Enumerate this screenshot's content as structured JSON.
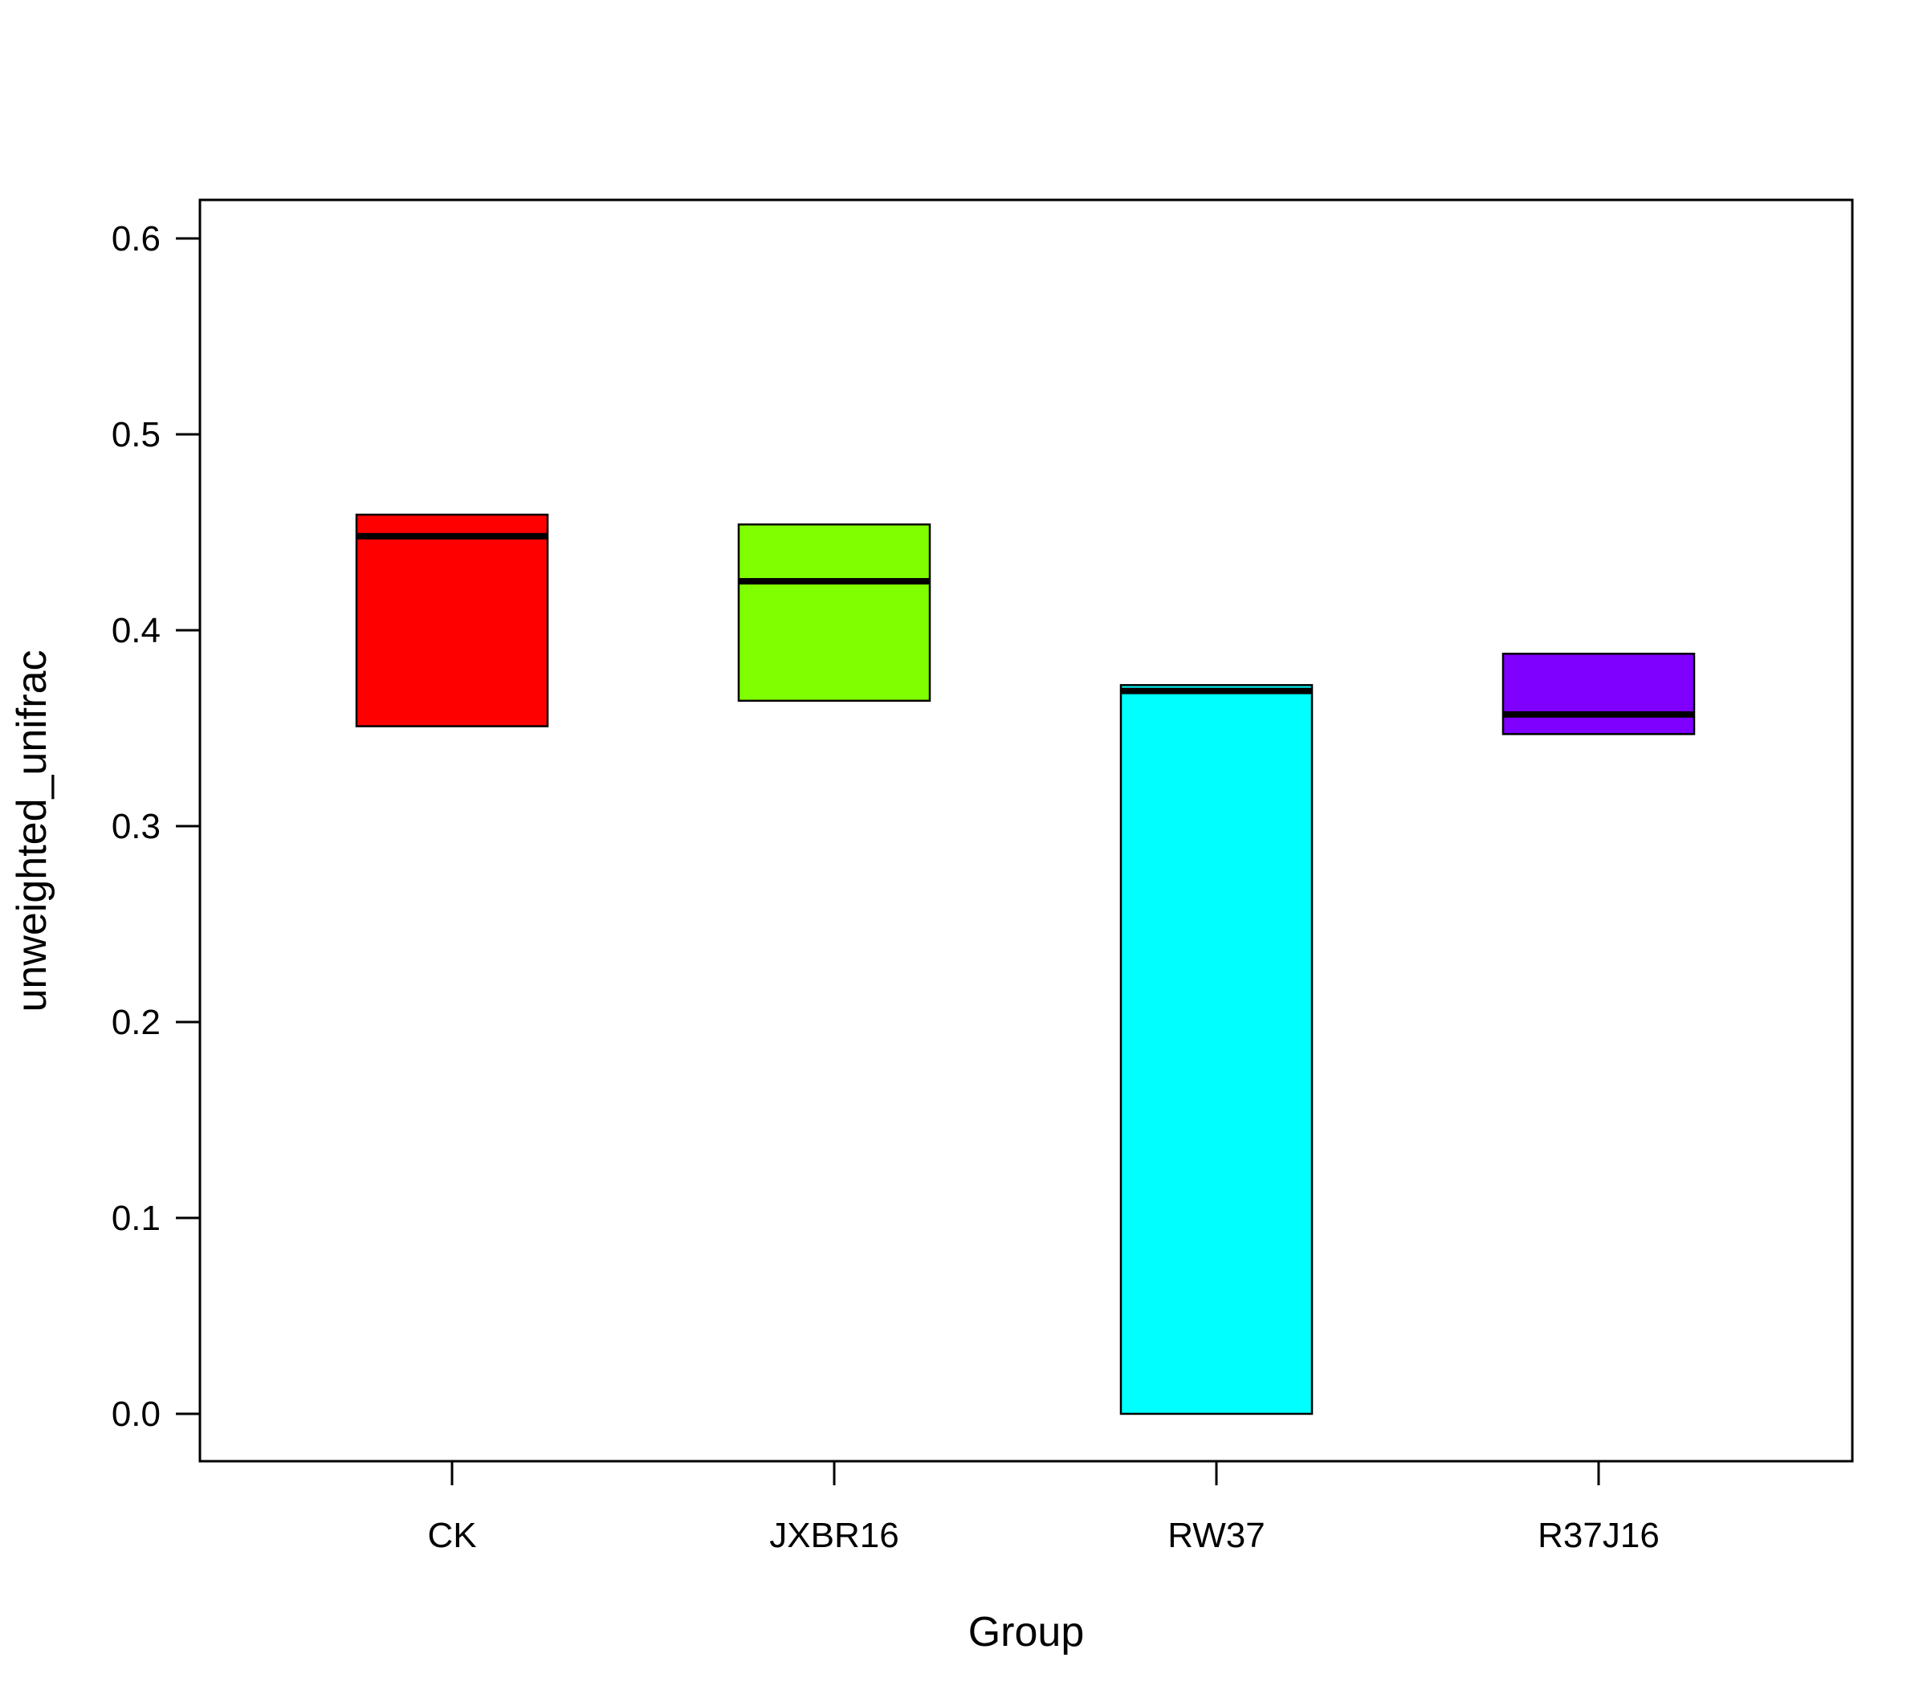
{
  "chart_data": {
    "type": "boxplot",
    "title": "",
    "xlabel": "Group",
    "ylabel": "unweighted_unifrac",
    "ylim": [
      -0.024,
      0.62
    ],
    "yticks": [
      0.0,
      0.1,
      0.2,
      0.3,
      0.4,
      0.5,
      0.6
    ],
    "ytick_labels": [
      "0.0",
      "0.1",
      "0.2",
      "0.3",
      "0.4",
      "0.5",
      "0.6"
    ],
    "grid": false,
    "legend": "none",
    "categories": [
      "CK",
      "JXBR16",
      "RW37",
      "R37J16"
    ],
    "colors": [
      "#FF0000",
      "#80FF00",
      "#00FFFF",
      "#8000FF"
    ],
    "boxes": [
      {
        "label": "CK",
        "q1": 0.351,
        "median": 0.448,
        "q3": 0.459
      },
      {
        "label": "JXBR16",
        "q1": 0.364,
        "median": 0.425,
        "q3": 0.454
      },
      {
        "label": "RW37",
        "q1": 0.0,
        "median": 0.369,
        "q3": 0.372
      },
      {
        "label": "R37J16",
        "q1": 0.347,
        "median": 0.357,
        "q3": 0.388
      }
    ]
  }
}
